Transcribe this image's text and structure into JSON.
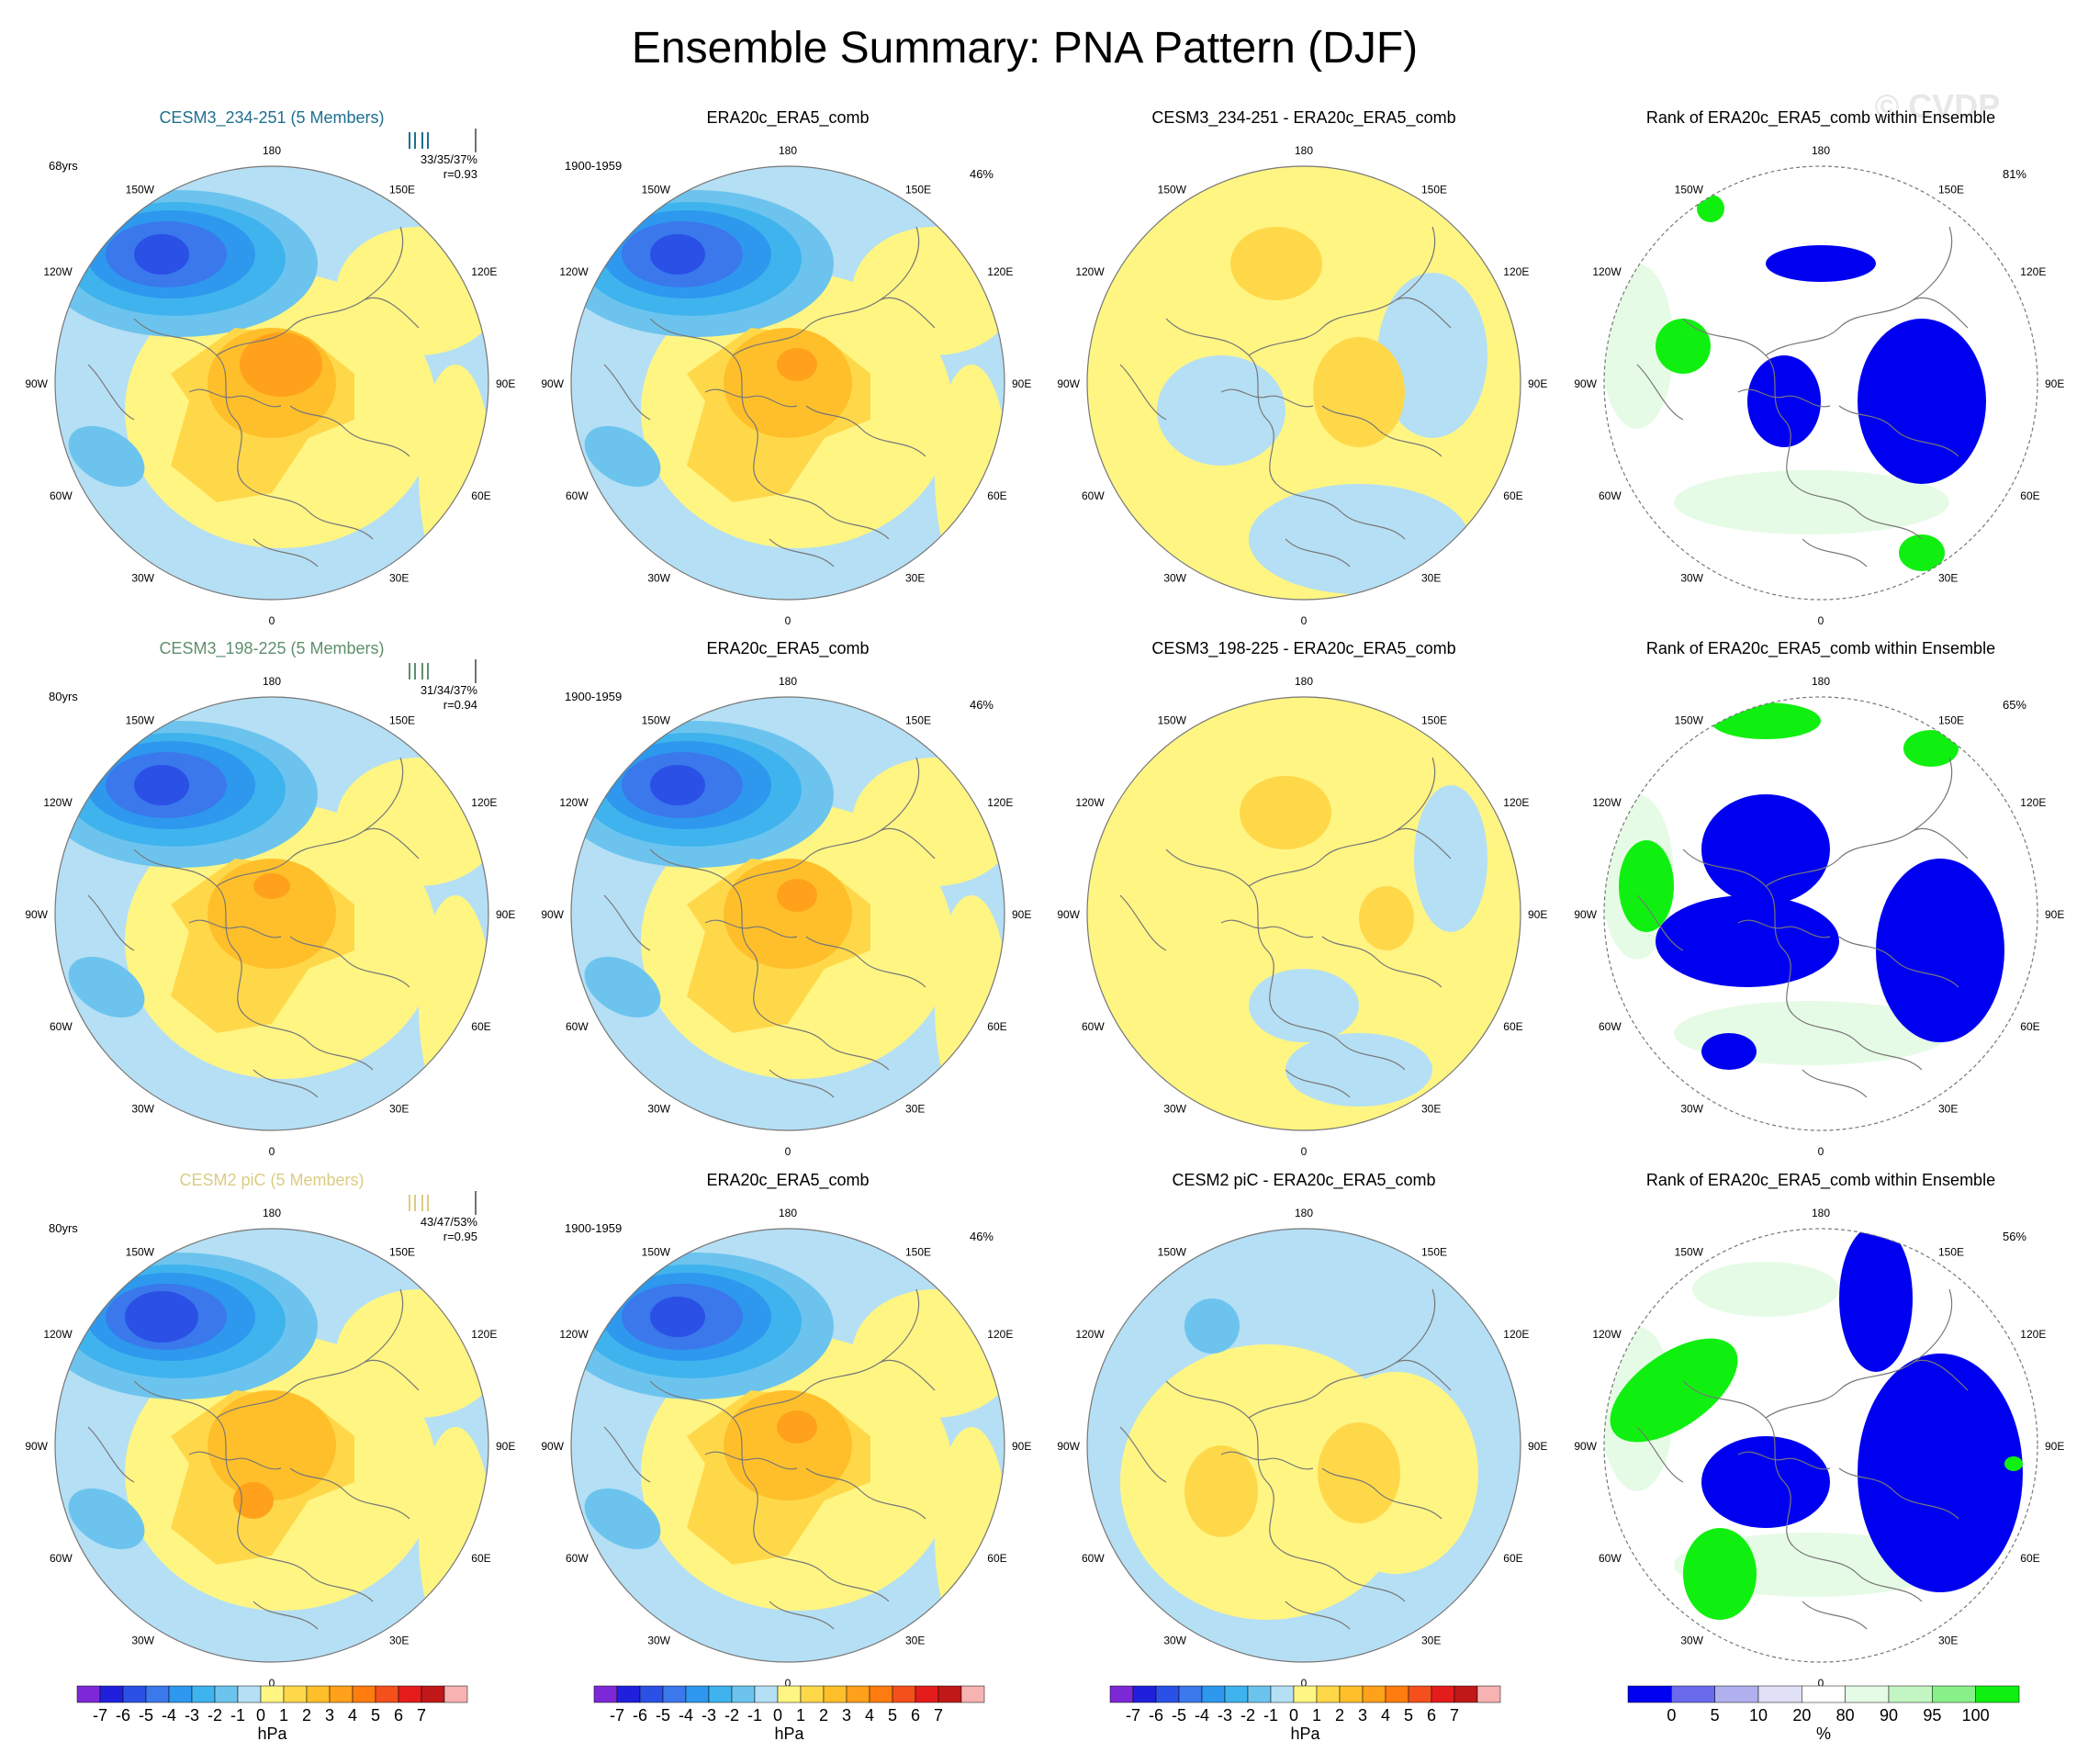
{
  "title": "Ensemble Summary: PNA Pattern (DJF)",
  "watermark": "© CVDP",
  "colors": {
    "ocean_pos": "#fff583",
    "ocean_neg": "#b5dff4",
    "coast": "#777777",
    "title_rows": [
      "#1e6f8f",
      "#5f8f6c",
      "#dccc82"
    ]
  },
  "lon_labels": [
    "180",
    "150E",
    "120E",
    "90E",
    "60E",
    "30E",
    "0",
    "30W",
    "60W",
    "90W",
    "120W",
    "150W"
  ],
  "rows": [
    {
      "model_title": "CESM3_234-251 (5 Members)",
      "years": "68yrs",
      "pct_stats": "33/35/37%",
      "corr": "r=0.93",
      "obs_title": "ERA20c_ERA5_comb",
      "obs_period": "1900-1959",
      "obs_pct": "46%",
      "diff_title": "CESM3_234-251 - ERA20c_ERA5_comb",
      "rank_title": "Rank of ERA20c_ERA5_comb within Ensemble",
      "rank_pct": "81%"
    },
    {
      "model_title": "CESM3_198-225 (5 Members)",
      "years": "80yrs",
      "pct_stats": "31/34/37%",
      "corr": "r=0.94",
      "obs_title": "ERA20c_ERA5_comb",
      "obs_period": "1900-1959",
      "obs_pct": "46%",
      "diff_title": "CESM3_198-225 - ERA20c_ERA5_comb",
      "rank_title": "Rank of ERA20c_ERA5_comb within Ensemble",
      "rank_pct": "65%"
    },
    {
      "model_title": "CESM2 piC (5 Members)",
      "years": "80yrs",
      "pct_stats": "43/47/53%",
      "corr": "r=0.95",
      "obs_title": "ERA20c_ERA5_comb",
      "obs_period": "1900-1959",
      "obs_pct": "46%",
      "diff_title": "CESM2 piC - ERA20c_ERA5_comb",
      "rank_title": "Rank of ERA20c_ERA5_comb within Ensemble",
      "rank_pct": "56%"
    }
  ],
  "chart_data": [
    {
      "type": "heatmap",
      "name": "PNA pattern sea-level-pressure anomaly (polar stereographic, DJF)",
      "units": "hPa",
      "levels": [
        -7,
        -6,
        -5,
        -4,
        -3,
        -2,
        -1,
        0,
        1,
        2,
        3,
        4,
        5,
        6,
        7
      ],
      "colorbar": {
        "labels": [
          "-7",
          "-6",
          "-5",
          "-4",
          "-3",
          "-2",
          "-1",
          "0",
          "1",
          "2",
          "3",
          "4",
          "5",
          "6",
          "7"
        ],
        "colors": [
          "#7d28d6",
          "#2020dc",
          "#2a50e6",
          "#3a78ec",
          "#2d98ee",
          "#3fb3ee",
          "#6cc4ee",
          "#b5dff4",
          "#fff583",
          "#ffd84a",
          "#ffbf2a",
          "#ffa11a",
          "#ff7c10",
          "#f4501c",
          "#e41c1c",
          "#c01818",
          "#f7b2b2"
        ],
        "unit_label": "hPa"
      },
      "note": "Columns 1-3 of each row use this scale"
    },
    {
      "type": "heatmap",
      "name": "Rank of ERA20c_ERA5_comb within Ensemble",
      "units": "%",
      "levels": [
        0,
        5,
        10,
        20,
        80,
        90,
        95,
        100
      ],
      "colorbar": {
        "labels": [
          "0",
          "5",
          "10",
          "20",
          "80",
          "90",
          "95",
          "100"
        ],
        "colors": [
          "#0000f0",
          "#6a6aec",
          "#b0b0ee",
          "#e0e0f6",
          "#ffffff",
          "#e6fbe6",
          "#c4f6c4",
          "#88f088",
          "#10f010"
        ],
        "unit_label": "%"
      },
      "note": "Column 4 of each row uses this scale"
    }
  ]
}
